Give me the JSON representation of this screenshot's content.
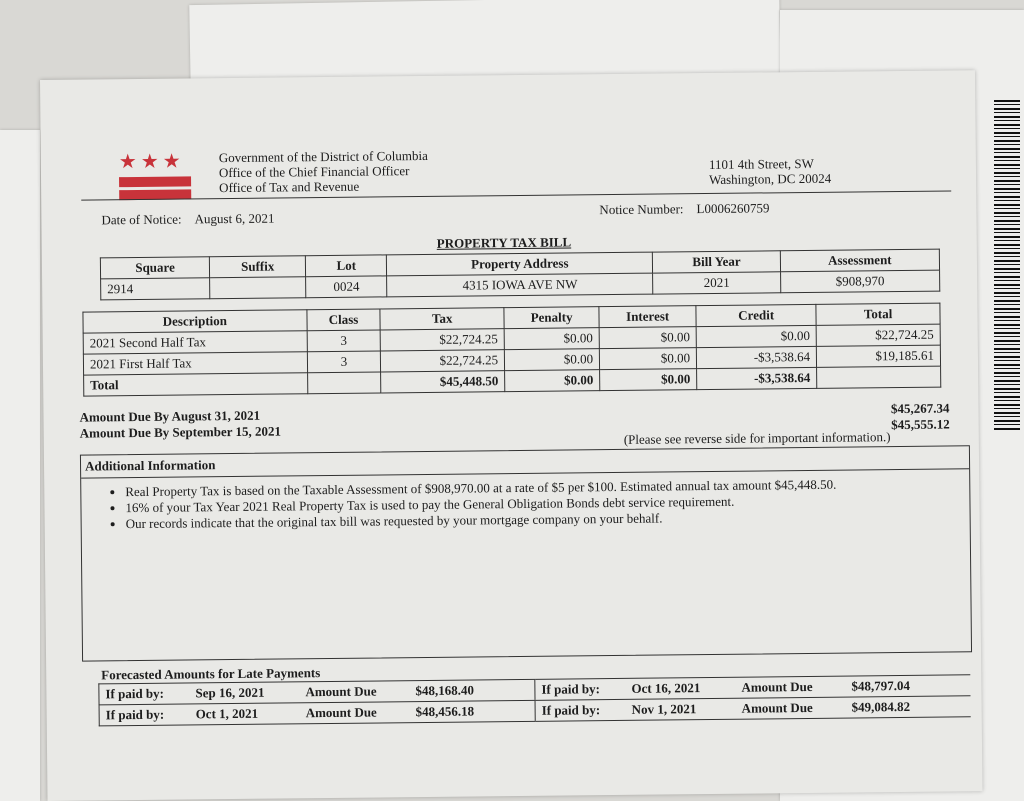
{
  "header": {
    "agency": [
      "Government of the District of Columbia",
      "Office of the Chief Financial Officer",
      "Office of Tax and Revenue"
    ],
    "address_line1": "1101 4th Street, SW",
    "address_line2": "Washington, DC 20024",
    "date_label": "Date of Notice:",
    "date": "August 6, 2021",
    "notice_label": "Notice Number:",
    "notice_number": "L0006260759",
    "title": "PROPERTY TAX BILL",
    "brand_color": "#c8333a"
  },
  "property": {
    "headers": [
      "Square",
      "Suffix",
      "Lot",
      "Property Address",
      "Bill Year",
      "Assessment"
    ],
    "values": [
      "2914",
      "",
      "0024",
      "4315 IOWA AVE NW",
      "2021",
      "$908,970"
    ]
  },
  "charges": {
    "headers": [
      "Description",
      "Class",
      "Tax",
      "Penalty",
      "Interest",
      "Credit",
      "Total"
    ],
    "rows": [
      [
        "2021 Second Half Tax",
        "3",
        "$22,724.25",
        "$0.00",
        "$0.00",
        "$0.00",
        "$22,724.25"
      ],
      [
        "2021 First Half Tax",
        "3",
        "$22,724.25",
        "$0.00",
        "$0.00",
        "-$3,538.64",
        "$19,185.61"
      ],
      [
        "Total",
        "",
        "$45,448.50",
        "$0.00",
        "$0.00",
        "-$3,538.64",
        ""
      ]
    ],
    "due": [
      {
        "label": "Amount Due By August 31, 2021",
        "amount": "$45,267.34"
      },
      {
        "label": "Amount Due By September 15, 2021",
        "amount": "$45,555.12"
      }
    ]
  },
  "additional": {
    "note": "(Please see reverse side for important information.)",
    "title": "Additional Information",
    "bullets": [
      "Real Property Tax is based on the Taxable Assessment of $908,970.00 at a rate of $5 per $100. Estimated annual tax amount $45,448.50.",
      "16% of your Tax Year 2021 Real Property Tax is used to pay the General Obligation Bonds debt service requirement.",
      "Our records indicate that the original tax bill was requested by your mortgage company on your behalf."
    ]
  },
  "forecast": {
    "title": "Forecasted Amounts for Late Payments",
    "paid_label": "If paid by:",
    "due_label": "Amount Due",
    "rows": [
      [
        {
          "date": "Sep 16, 2021",
          "amount": "$48,168.40"
        },
        {
          "date": "Oct 16, 2021",
          "amount": "$48,797.04"
        }
      ],
      [
        {
          "date": "Oct 1, 2021",
          "amount": "$48,456.18"
        },
        {
          "date": "Nov 1, 2021",
          "amount": "$49,084.82"
        }
      ]
    ]
  }
}
